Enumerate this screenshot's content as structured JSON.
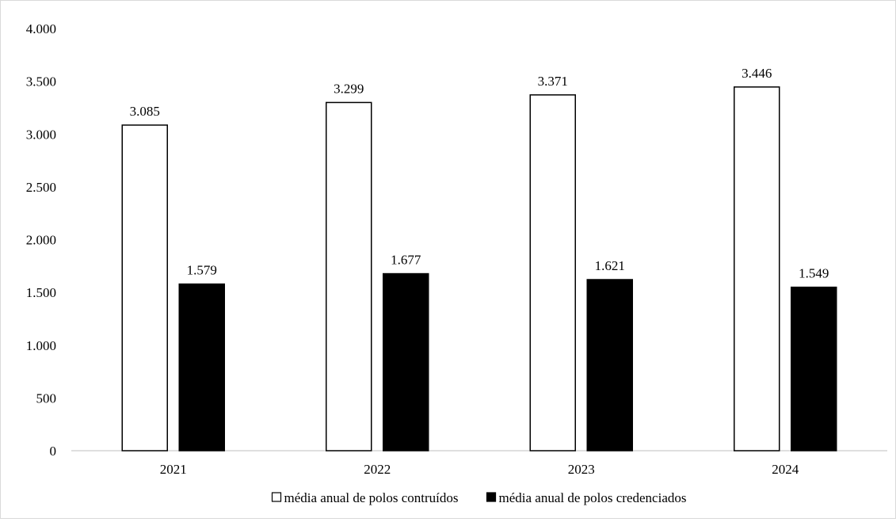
{
  "chart_data": {
    "type": "bar",
    "title": "",
    "xlabel": "",
    "ylabel": "",
    "categories": [
      "2021",
      "2022",
      "2023",
      "2024"
    ],
    "series": [
      {
        "name": "média anual de polos contruídos",
        "values": [
          3085,
          3299,
          3371,
          3446
        ],
        "labels": [
          "3.085",
          "3.299",
          "3.371",
          "3.446"
        ],
        "fill": "#ffffff",
        "stroke": "#000000"
      },
      {
        "name": "média anual de polos credenciados",
        "values": [
          1579,
          1677,
          1621,
          1549
        ],
        "labels": [
          "1.579",
          "1.677",
          "1.621",
          "1.549"
        ],
        "fill": "#000000",
        "stroke": "#000000"
      }
    ],
    "ylim": [
      0,
      4000
    ],
    "yticks": [
      0,
      500,
      1000,
      1500,
      2000,
      2500,
      3000,
      3500,
      4000
    ],
    "ytick_labels": [
      "0",
      "500",
      "1.000",
      "1.500",
      "2.000",
      "2.500",
      "3.000",
      "3.500",
      "4.000"
    ],
    "grid": false,
    "legend_position": "bottom-center"
  }
}
